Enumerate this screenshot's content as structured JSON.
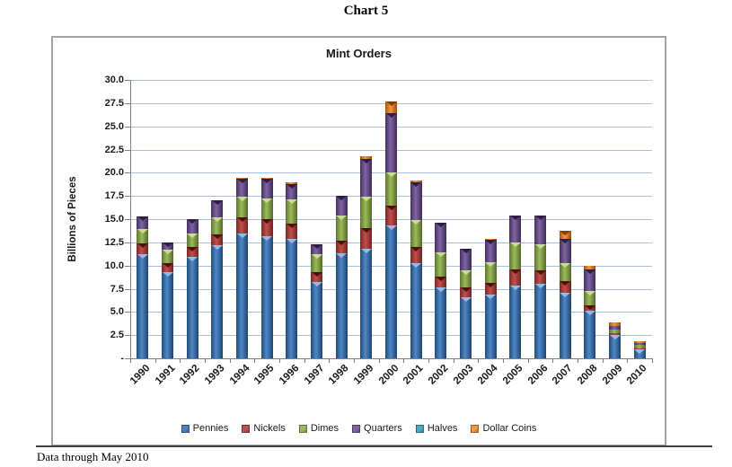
{
  "page": {
    "title": "Chart 5",
    "footnote": "Data through May 2010"
  },
  "chart": {
    "title": "Mint Orders",
    "y_axis": {
      "label": "Billions of Pieces",
      "ticks": [
        "30.0",
        "27.5",
        "25.0",
        "22.5",
        "20.0",
        "17.5",
        "15.0",
        "12.5",
        "10.0",
        "7.5",
        "5.0",
        "2.5",
        "-"
      ],
      "min": 0,
      "max": 30,
      "step": 2.5
    },
    "colors": {
      "gridline": "#a8c0de",
      "axis": "#7f7f7f",
      "pennies": "#4f81bd",
      "nickels": "#c0504d",
      "dimes": "#9bbb59",
      "quarters": "#8064a2",
      "halves": "#4bacc6",
      "dollar_coins": "#f79646"
    }
  },
  "chart_data": {
    "type": "bar",
    "stacked": true,
    "title": "Mint Orders",
    "xlabel": "",
    "ylabel": "Billions of Pieces",
    "ylim": [
      0,
      30
    ],
    "grid": true,
    "legend_position": "bottom",
    "categories": [
      "1990",
      "1991",
      "1992",
      "1993",
      "1994",
      "1995",
      "1996",
      "1997",
      "1998",
      "1999",
      "2000",
      "2001",
      "2002",
      "2003",
      "2004",
      "2005",
      "2006",
      "2007",
      "2008",
      "2009",
      "2010"
    ],
    "series": [
      {
        "name": "Pennies",
        "color": "#4f81bd",
        "values": [
          11.2,
          9.3,
          10.9,
          12.2,
          13.5,
          13.2,
          12.9,
          8.2,
          11.3,
          11.8,
          14.3,
          10.3,
          7.6,
          6.6,
          6.9,
          7.8,
          8.0,
          7.1,
          5.1,
          2.5,
          1.0
        ]
      },
      {
        "name": "Nickels",
        "color": "#c0504d",
        "values": [
          1.2,
          1.0,
          1.1,
          1.2,
          1.7,
          1.8,
          1.6,
          1.1,
          1.4,
          2.2,
          2.2,
          1.7,
          1.2,
          1.0,
          1.2,
          1.8,
          1.5,
          1.2,
          0.6,
          0.2,
          0.1
        ]
      },
      {
        "name": "Dimes",
        "color": "#9bbb59",
        "values": [
          1.5,
          1.4,
          1.5,
          1.8,
          2.2,
          2.2,
          2.6,
          1.9,
          2.7,
          3.4,
          3.5,
          2.9,
          2.6,
          1.9,
          2.3,
          2.9,
          2.8,
          2.0,
          1.6,
          0.4,
          0.4
        ]
      },
      {
        "name": "Quarters",
        "color": "#8064a2",
        "values": [
          1.4,
          0.8,
          1.5,
          1.8,
          2.0,
          2.2,
          1.7,
          1.1,
          2.1,
          4.1,
          6.4,
          4.1,
          3.2,
          2.3,
          2.4,
          2.9,
          3.1,
          2.6,
          2.3,
          0.4,
          0.1
        ]
      },
      {
        "name": "Halves",
        "color": "#4bacc6",
        "values": [
          0,
          0,
          0,
          0,
          0,
          0,
          0,
          0,
          0,
          0,
          0,
          0,
          0,
          0,
          0,
          0,
          0,
          0,
          0,
          0,
          0
        ]
      },
      {
        "name": "Dollar Coins",
        "color": "#f79646",
        "values": [
          0,
          0,
          0,
          0,
          0.1,
          0.1,
          0.2,
          0,
          0,
          0.3,
          1.3,
          0.2,
          0,
          0,
          0.1,
          0,
          0,
          0.8,
          0.4,
          0.4,
          0.25
        ]
      }
    ],
    "totals": [
      15.3,
      12.5,
      15.0,
      17.0,
      19.5,
      19.5,
      19.0,
      12.3,
      17.5,
      21.8,
      27.7,
      19.2,
      14.6,
      11.8,
      12.9,
      15.4,
      15.4,
      13.7,
      10.0,
      3.9,
      1.85
    ]
  }
}
